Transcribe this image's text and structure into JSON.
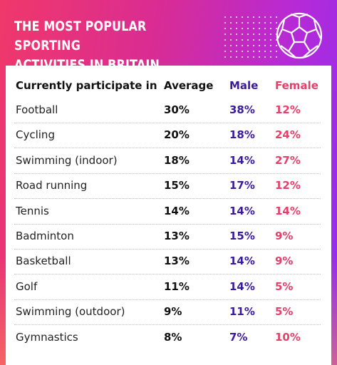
{
  "header": {
    "title_line1": "THE MOST POPULAR SPORTING",
    "title_line2": "ACTIVITIES IN BRITAIN",
    "icon": "football-icon"
  },
  "colors": {
    "male": "#3a1a9c",
    "female": "#e4406a",
    "background_gradient": [
      "#f0386a",
      "#b52ad8",
      "#8f2ef0"
    ]
  },
  "chart_data": {
    "type": "table",
    "title": "THE MOST POPULAR SPORTING ACTIVITIES IN BRITAIN",
    "columns": [
      "Currently participate in",
      "Average",
      "Male",
      "Female"
    ],
    "rows": [
      {
        "activity": "Football",
        "average": "30%",
        "male": "38%",
        "female": "12%"
      },
      {
        "activity": "Cycling",
        "average": "20%",
        "male": "18%",
        "female": "24%"
      },
      {
        "activity": "Swimming (indoor)",
        "average": "18%",
        "male": "14%",
        "female": "27%"
      },
      {
        "activity": "Road running",
        "average": "15%",
        "male": "17%",
        "female": "12%"
      },
      {
        "activity": "Tennis",
        "average": "14%",
        "male": "14%",
        "female": "14%"
      },
      {
        "activity": "Badminton",
        "average": "13%",
        "male": "15%",
        "female": "9%"
      },
      {
        "activity": "Basketball",
        "average": "13%",
        "male": "14%",
        "female": "9%"
      },
      {
        "activity": "Golf",
        "average": "11%",
        "male": "14%",
        "female": "5%"
      },
      {
        "activity": "Swimming (outdoor)",
        "average": "9%",
        "male": "11%",
        "female": "5%"
      },
      {
        "activity": "Gymnastics",
        "average": "8%",
        "male": "7%",
        "female": "10%"
      }
    ]
  }
}
